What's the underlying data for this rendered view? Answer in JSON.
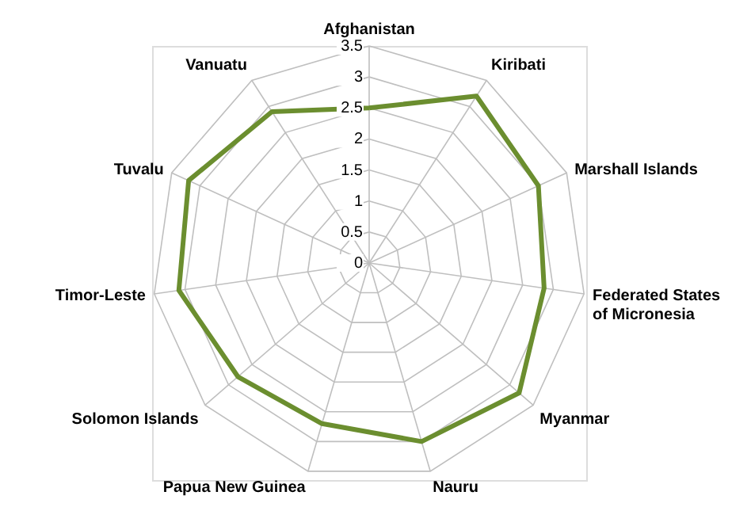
{
  "chart_data": {
    "type": "radar",
    "categories": [
      "Afghanistan",
      "Kiribati",
      "Marshall Islands",
      "Federated States of Micronesia",
      "Myanmar",
      "Nauru",
      "Papua New Guinea",
      "Solomon Islands",
      "Timor-Leste",
      "Tuvalu",
      "Vanuatu"
    ],
    "series": [
      {
        "color": "#6b8e2f",
        "values": [
          2.5,
          3.2,
          3.0,
          2.85,
          3.2,
          3.0,
          2.7,
          2.8,
          3.1,
          3.2,
          2.9
        ]
      }
    ],
    "ylim": [
      0,
      3.5
    ],
    "yticks": [
      0,
      0.5,
      1,
      1.5,
      2,
      2.5,
      3,
      3.5
    ],
    "grid": true
  }
}
